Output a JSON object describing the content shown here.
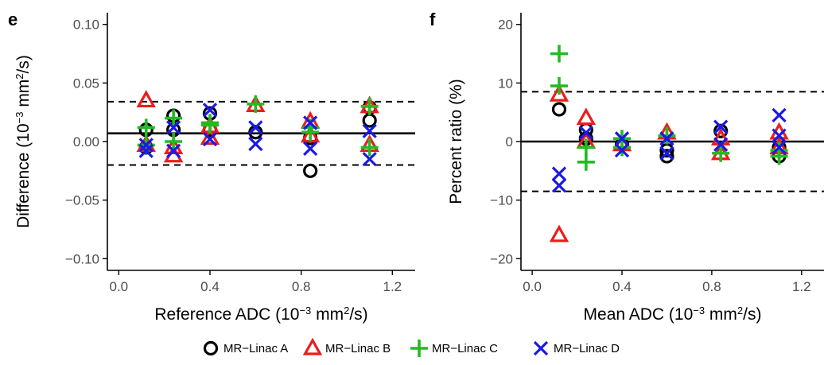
{
  "colors": {
    "MR-Linac A": "#000000",
    "MR-Linac B": "#ee1c1c",
    "MR-Linac C": "#22bb22",
    "MR-Linac D": "#1a1ae6"
  },
  "legend": {
    "position": "bottom",
    "items": [
      {
        "label": "MR−Linac A",
        "marker": "circle-icon"
      },
      {
        "label": "MR−Linac B",
        "marker": "triangle-icon"
      },
      {
        "label": "MR−Linac C",
        "marker": "plus-icon"
      },
      {
        "label": "MR−Linac D",
        "marker": "cross-icon"
      }
    ]
  },
  "chart_data": [
    {
      "panel_label": "e",
      "type": "scatter",
      "xlabel_text": "Reference ADC (10",
      "xlabel_exp": "−3",
      "xlabel_mid": " mm",
      "xlabel_sq": "2",
      "xlabel_end": "/s)",
      "ylabel_text": "Difference (10",
      "ylabel_exp": "−3",
      "ylabel_mid": " mm",
      "ylabel_sq": "2",
      "ylabel_end": "/s)",
      "xlim": [
        -0.05,
        1.3
      ],
      "ylim": [
        -0.11,
        0.11
      ],
      "xticks": [
        0.0,
        0.4,
        0.8,
        1.2
      ],
      "xtick_labels": [
        "0.0",
        "0.4",
        "0.8",
        "1.2"
      ],
      "yticks": [
        -0.1,
        -0.05,
        0.0,
        0.05,
        0.1
      ],
      "ytick_labels": [
        "−0.10",
        "−0.05",
        "0.00",
        "0.05",
        "0.10"
      ],
      "mean_line": 0.007,
      "limits_of_agreement": [
        0.034,
        -0.02
      ],
      "series": [
        {
          "name": "MR−Linac A",
          "marker": "circle",
          "x": [
            0.12,
            0.12,
            0.24,
            0.24,
            0.4,
            0.4,
            0.6,
            0.84,
            0.84,
            1.1,
            1.1
          ],
          "y": [
            0.01,
            -0.005,
            0.022,
            0.01,
            0.024,
            0.01,
            0.008,
            -0.025,
            0.003,
            0.018,
            0.029
          ]
        },
        {
          "name": "MR−Linac B",
          "marker": "triangle",
          "x": [
            0.12,
            0.12,
            0.24,
            0.24,
            0.4,
            0.4,
            0.6,
            0.84,
            0.84,
            1.1,
            1.1
          ],
          "y": [
            0.035,
            -0.003,
            -0.012,
            -0.005,
            0.013,
            0.003,
            0.031,
            0.017,
            0.005,
            0.03,
            -0.003
          ]
        },
        {
          "name": "MR−Linac C",
          "marker": "plus",
          "x": [
            0.12,
            0.12,
            0.24,
            0.24,
            0.4,
            0.4,
            0.6,
            0.84,
            0.84,
            1.1,
            1.1
          ],
          "y": [
            0.012,
            -0.003,
            0.02,
            0.0,
            0.016,
            0.014,
            0.032,
            0.012,
            0.008,
            0.03,
            -0.005
          ]
        },
        {
          "name": "MR−Linac D",
          "marker": "cross",
          "x": [
            0.12,
            0.12,
            0.24,
            0.24,
            0.4,
            0.4,
            0.6,
            0.6,
            0.84,
            0.84,
            1.1,
            1.1
          ],
          "y": [
            -0.003,
            -0.008,
            0.012,
            -0.008,
            0.027,
            0.002,
            0.012,
            -0.002,
            0.016,
            -0.006,
            0.009,
            -0.015
          ]
        }
      ]
    },
    {
      "panel_label": "f",
      "type": "scatter",
      "xlabel_text": "Mean ADC (10",
      "xlabel_exp": "−3",
      "xlabel_mid": " mm",
      "xlabel_sq": "2",
      "xlabel_end": "/s)",
      "ylabel_text": "Percent ratio (%)",
      "xlim": [
        -0.05,
        1.3
      ],
      "ylim": [
        -22,
        22
      ],
      "xticks": [
        0.0,
        0.4,
        0.8,
        1.2
      ],
      "xtick_labels": [
        "0.0",
        "0.4",
        "0.8",
        "1.2"
      ],
      "yticks": [
        -20,
        -10,
        0,
        10,
        20
      ],
      "ytick_labels": [
        "−20",
        "−10",
        "0",
        "10",
        "20"
      ],
      "mean_line": 0.0,
      "limits_of_agreement": [
        8.5,
        -8.5
      ],
      "series": [
        {
          "name": "MR−Linac A",
          "marker": "circle",
          "x": [
            0.12,
            0.24,
            0.24,
            0.4,
            0.6,
            0.6,
            0.84,
            1.1,
            1.1
          ],
          "y": [
            5.5,
            2.0,
            0.5,
            -0.5,
            -1.5,
            -2.5,
            1.8,
            -2.5,
            -1.0
          ]
        },
        {
          "name": "MR−Linac B",
          "marker": "triangle",
          "x": [
            0.12,
            0.12,
            0.24,
            0.24,
            0.4,
            0.6,
            0.84,
            0.84,
            1.1,
            1.1
          ],
          "y": [
            8.0,
            -16.0,
            4.0,
            0.0,
            -0.5,
            1.5,
            0.5,
            -2.0,
            1.5,
            -1.0
          ]
        },
        {
          "name": "MR−Linac C",
          "marker": "plus",
          "x": [
            0.12,
            0.12,
            0.24,
            0.24,
            0.4,
            0.4,
            0.6,
            0.84,
            1.1,
            1.1
          ],
          "y": [
            15.0,
            9.5,
            -1.0,
            -3.5,
            0.5,
            -1.0,
            1.0,
            -2.0,
            -1.5,
            -2.5
          ]
        },
        {
          "name": "MR−Linac D",
          "marker": "cross",
          "x": [
            0.12,
            0.12,
            0.24,
            0.4,
            0.4,
            0.6,
            0.6,
            0.84,
            0.84,
            1.1,
            1.1,
            1.1
          ],
          "y": [
            -5.5,
            -7.5,
            1.5,
            0.5,
            -1.5,
            0.5,
            -2.0,
            2.5,
            -0.5,
            4.5,
            1.0,
            -1.0
          ]
        }
      ]
    }
  ]
}
